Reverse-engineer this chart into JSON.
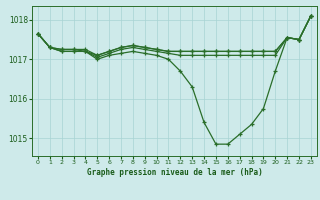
{
  "title": "Graphe pression niveau de la mer (hPa)",
  "background_color": "#ceeaea",
  "line_color": "#2a6e2a",
  "marker_color": "#2a6e2a",
  "grid_color": "#a8d4d4",
  "axis_color": "#2a6e2a",
  "text_color": "#1a5c1a",
  "xlim": [
    -0.5,
    23.5
  ],
  "ylim": [
    1014.55,
    1018.35
  ],
  "yticks": [
    1015,
    1016,
    1017,
    1018
  ],
  "xticks": [
    0,
    1,
    2,
    3,
    4,
    5,
    6,
    7,
    8,
    9,
    10,
    11,
    12,
    13,
    14,
    15,
    16,
    17,
    18,
    19,
    20,
    21,
    22,
    23
  ],
  "series": [
    [
      1017.65,
      1017.3,
      1017.2,
      1017.2,
      1017.2,
      1017.0,
      1017.1,
      1017.15,
      1017.2,
      1017.15,
      1017.1,
      1017.0,
      1016.7,
      1016.3,
      1015.4,
      1014.85,
      1014.85,
      1015.1,
      1015.35,
      1015.75,
      1016.7,
      1017.55,
      1017.5,
      1018.1
    ],
    [
      1017.65,
      1017.3,
      1017.2,
      1017.2,
      1017.2,
      1017.05,
      1017.15,
      1017.25,
      1017.3,
      1017.25,
      1017.2,
      1017.15,
      1017.1,
      1017.1,
      1017.1,
      1017.1,
      1017.1,
      1017.1,
      1017.1,
      1017.1,
      1017.1,
      1017.55,
      1017.5,
      1018.1
    ],
    [
      1017.65,
      1017.3,
      1017.25,
      1017.25,
      1017.2,
      1017.1,
      1017.2,
      1017.3,
      1017.35,
      1017.3,
      1017.25,
      1017.2,
      1017.2,
      1017.2,
      1017.2,
      1017.2,
      1017.2,
      1017.2,
      1017.2,
      1017.2,
      1017.2,
      1017.55,
      1017.5,
      1018.1
    ],
    [
      1017.65,
      1017.3,
      1017.25,
      1017.25,
      1017.25,
      1017.1,
      1017.2,
      1017.3,
      1017.35,
      1017.3,
      1017.25,
      1017.2,
      1017.2,
      1017.2,
      1017.2,
      1017.2,
      1017.2,
      1017.2,
      1017.2,
      1017.2,
      1017.2,
      1017.55,
      1017.5,
      1018.1
    ]
  ]
}
